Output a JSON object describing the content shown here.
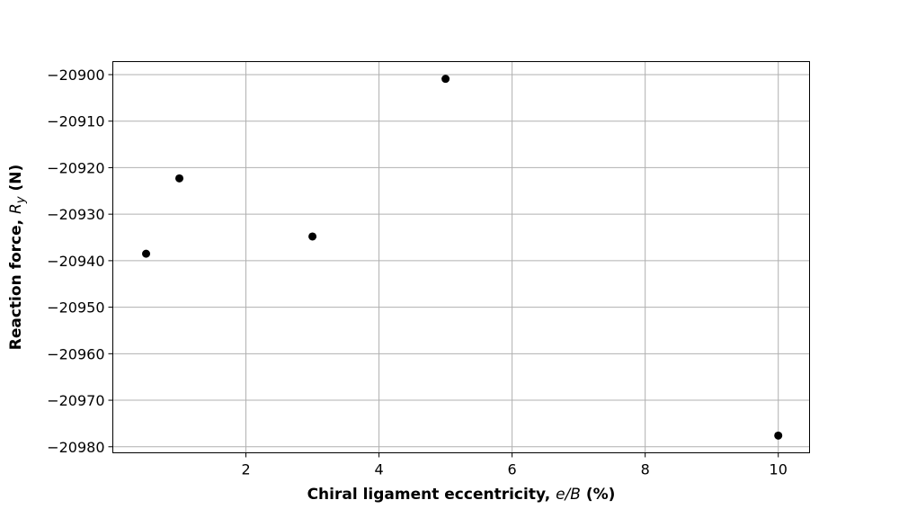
{
  "chart_data": {
    "type": "scatter",
    "title": "",
    "xlabel": {
      "prefix": "Chiral ligament eccentricity, ",
      "math": "e/B",
      "suffix": " (%)"
    },
    "ylabel": {
      "prefix": "Reaction force, ",
      "math_base": "R",
      "math_sub": "y",
      "suffix": " (N)"
    },
    "xlim": [
      0.0,
      10.47
    ],
    "ylim": [
      -20981.3,
      -20897.2
    ],
    "x_ticks": [
      2,
      4,
      6,
      8,
      10
    ],
    "x_tick_labels": [
      "2",
      "4",
      "6",
      "8",
      "10"
    ],
    "y_ticks": [
      -20900,
      -20910,
      -20920,
      -20930,
      -20940,
      -20950,
      -20960,
      -20970,
      -20980
    ],
    "y_tick_labels": [
      "−20900",
      "−20910",
      "−20920",
      "−20930",
      "−20940",
      "−20950",
      "−20960",
      "−20970",
      "−20980"
    ],
    "grid": true,
    "marker_color": "#000000",
    "series": [
      {
        "x": [
          0.5,
          1.0,
          3.0,
          5.0,
          10.0
        ],
        "y": [
          -20938.5,
          -20922.3,
          -20934.8,
          -20900.9,
          -20977.6
        ]
      }
    ]
  }
}
